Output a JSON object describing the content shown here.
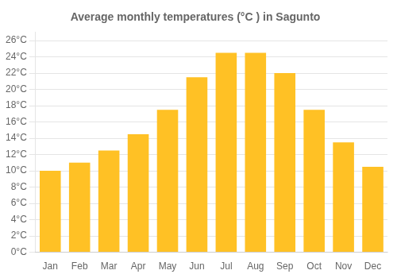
{
  "chart_data": {
    "type": "bar",
    "title": "Average monthly temperatures (°C ) in Sagunto",
    "categories": [
      "Jan",
      "Feb",
      "Mar",
      "Apr",
      "May",
      "Jun",
      "Jul",
      "Aug",
      "Sep",
      "Oct",
      "Nov",
      "Dec"
    ],
    "values": [
      10.0,
      11.0,
      12.5,
      14.5,
      17.5,
      21.5,
      24.5,
      24.5,
      22.0,
      17.5,
      13.5,
      10.5
    ],
    "color": "#FFC125",
    "ylim": [
      0,
      27
    ],
    "yticks": [
      {
        "value": 0,
        "label": "0°C"
      },
      {
        "value": 2,
        "label": "2°C"
      },
      {
        "value": 4,
        "label": "4°C"
      },
      {
        "value": 6,
        "label": "6°C"
      },
      {
        "value": 8,
        "label": "8°C"
      },
      {
        "value": 10,
        "label": "10°C"
      },
      {
        "value": 12,
        "label": "12°C"
      },
      {
        "value": 14,
        "label": "14°C"
      },
      {
        "value": 16,
        "label": "16°C"
      },
      {
        "value": 18,
        "label": "18°C"
      },
      {
        "value": 20,
        "label": "20°C"
      },
      {
        "value": 22,
        "label": "22°C"
      },
      {
        "value": 24,
        "label": "24°C"
      },
      {
        "value": 26,
        "label": "26°C"
      }
    ],
    "grid": true
  }
}
